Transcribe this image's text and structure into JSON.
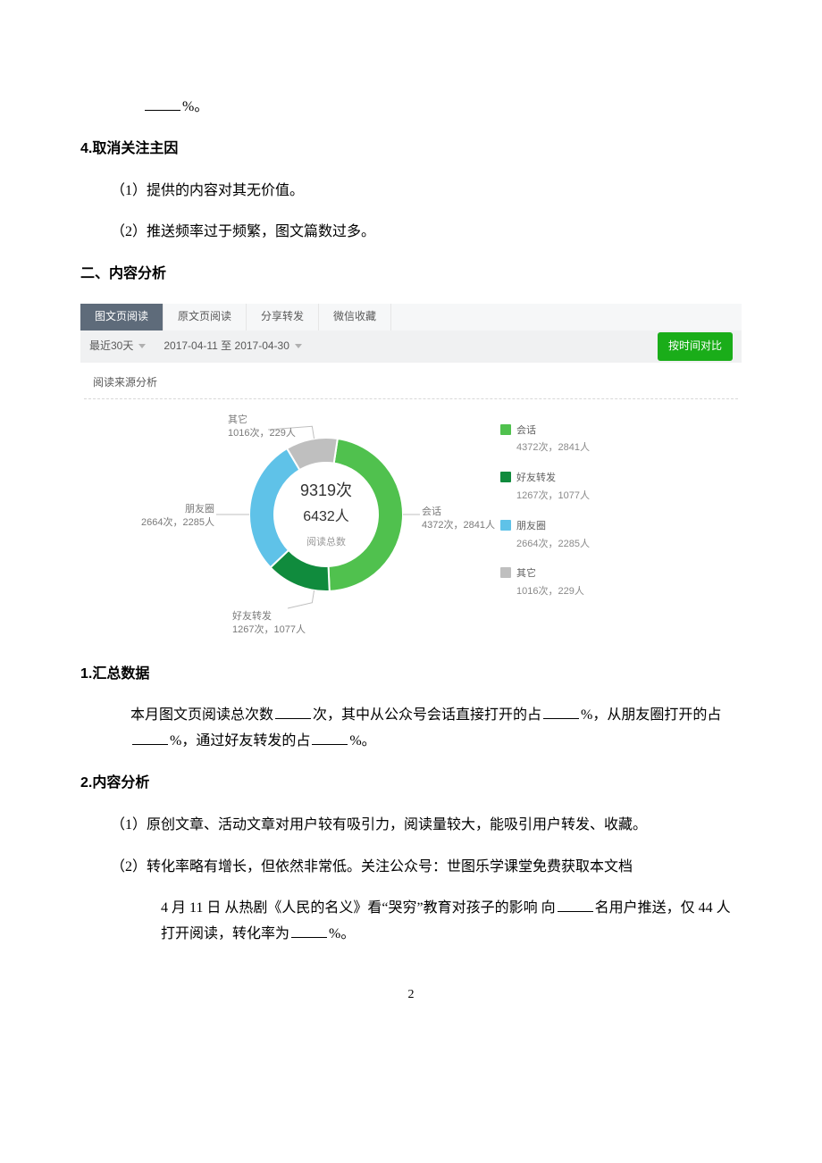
{
  "top_fragment": {
    "percent_suffix": "%。"
  },
  "sec4": {
    "heading": "4.取消关注主因",
    "items": [
      "（1）提供的内容对其无价值。",
      "（2）推送频率过于频繁，图文篇数过多。"
    ]
  },
  "section2": {
    "title": "二、内容分析"
  },
  "chart": {
    "tabs": [
      "图文页阅读",
      "原文页阅读",
      "分享转发",
      "微信收藏"
    ],
    "active_tab_index": 0,
    "range_label": "最近30天",
    "date_range": "2017-04-11 至 2017-04-30",
    "compare_button": "按时间对比",
    "subtitle": "阅读来源分析",
    "center": {
      "line1": "9319次",
      "line2": "6432人",
      "sublabel": "阅读总数"
    },
    "segments": [
      {
        "name": "会话",
        "reads": 4372,
        "people": 2841,
        "color": "#50c14e"
      },
      {
        "name": "好友转发",
        "reads": 1267,
        "people": 1077,
        "color": "#108b3d"
      },
      {
        "name": "朋友圈",
        "reads": 2664,
        "people": 2285,
        "color": "#5fc2e8"
      },
      {
        "name": "其它",
        "reads": 1016,
        "people": 229,
        "color": "#bfbfbf"
      }
    ],
    "total_reads": 9319,
    "donut_inner_r": 58,
    "donut_outer_r": 86,
    "background_color": "#ffffff"
  },
  "summary1": {
    "heading": "1.汇总数据",
    "text_parts": [
      "本月图文页阅读总次数",
      "次，其中从公众号会话直接打开的占",
      "%，从朋友圈打开的占",
      "%，通过好友转发的占",
      "%。"
    ]
  },
  "analysis2": {
    "heading": "2.内容分析",
    "items": [
      "（1）原创文章、活动文章对用户较有吸引力，阅读量较大，能吸引用户转发、收藏。",
      "（2）转化率略有增长，但依然非常低。关注公众号：世图乐学课堂免费获取本文档"
    ],
    "sub": {
      "parts": [
        "4 月 11 日  从热剧《人民的名义》看“哭穷”教育对孩子的影响  向",
        "名用户推送，仅 44 人打开阅读，转化率为",
        "%。"
      ]
    }
  },
  "footer": {
    "page": "2"
  }
}
